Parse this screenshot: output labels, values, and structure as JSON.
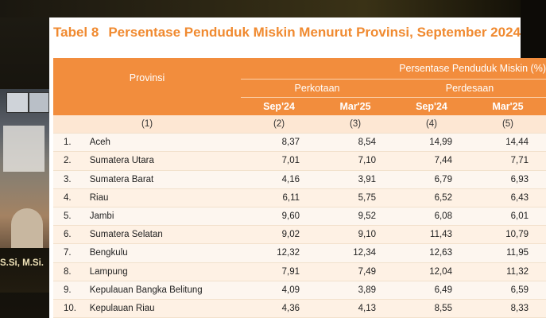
{
  "presenter": {
    "title_fragment": "S.Si, M.Si."
  },
  "slide": {
    "table_number": "Tabel 8",
    "title": "Persentase Penduduk Miskin Menurut Provinsi, September 2024"
  },
  "table": {
    "header_province": "Provinsi",
    "header_group": "Persentase Penduduk Miskin (%)",
    "header_urban": "Perkotaan",
    "header_rural": "Perdesaan",
    "periods": [
      "Sep'24",
      "Mar'25",
      "Sep'24",
      "Mar'25"
    ],
    "column_numbers": [
      "(1)",
      "(2)",
      "(3)",
      "(4)",
      "(5)"
    ],
    "rows": [
      {
        "no": "1.",
        "province": "Aceh",
        "values": [
          "8,37",
          "8,54",
          "14,99",
          "14,44"
        ]
      },
      {
        "no": "2.",
        "province": "Sumatera Utara",
        "values": [
          "7,01",
          "7,10",
          "7,44",
          "7,71"
        ]
      },
      {
        "no": "3.",
        "province": "Sumatera Barat",
        "values": [
          "4,16",
          "3,91",
          "6,79",
          "6,93"
        ]
      },
      {
        "no": "4.",
        "province": "Riau",
        "values": [
          "6,11",
          "5,75",
          "6,52",
          "6,43"
        ]
      },
      {
        "no": "5.",
        "province": "Jambi",
        "values": [
          "9,60",
          "9,52",
          "6,08",
          "6,01"
        ]
      },
      {
        "no": "6.",
        "province": "Sumatera Selatan",
        "values": [
          "9,02",
          "9,10",
          "11,43",
          "10,79"
        ]
      },
      {
        "no": "7.",
        "province": "Bengkulu",
        "values": [
          "12,32",
          "12,34",
          "12,63",
          "11,95"
        ]
      },
      {
        "no": "8.",
        "province": "Lampung",
        "values": [
          "7,91",
          "7,49",
          "12,04",
          "11,32"
        ]
      },
      {
        "no": "9.",
        "province": "Kepulauan Bangka Belitung",
        "values": [
          "4,09",
          "3,89",
          "6,49",
          "6,59"
        ]
      },
      {
        "no": "10.",
        "province": "Kepulauan Riau",
        "values": [
          "4,36",
          "4,13",
          "8,55",
          "8,33"
        ]
      }
    ]
  },
  "colors": {
    "accent": "#f28d3d",
    "title": "#f08a30"
  }
}
